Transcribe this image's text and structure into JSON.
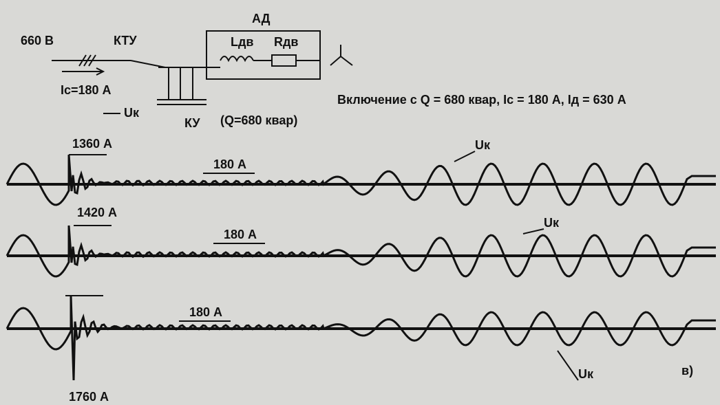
{
  "circuit": {
    "source": "660 В",
    "switch": "КТУ",
    "motor": "АД",
    "inductance": "Lдв",
    "resistance": "Rдв",
    "current": "Ic=180 А",
    "voltage": "Uк",
    "compensator": "КУ",
    "compensator_power": "(Q=680 квар)"
  },
  "caption": "Включение с Q = 680 квар, Ic = 180 А, Iд = 630 А",
  "traces": [
    {
      "peak": "1360 А",
      "steady": "180 А",
      "voltage": "Uк"
    },
    {
      "peak": "1420 А",
      "steady": "180 А",
      "voltage": "Uк"
    },
    {
      "peak": "1760 А",
      "steady": "180 А",
      "voltage": "Uк"
    }
  ],
  "panel": "в)"
}
